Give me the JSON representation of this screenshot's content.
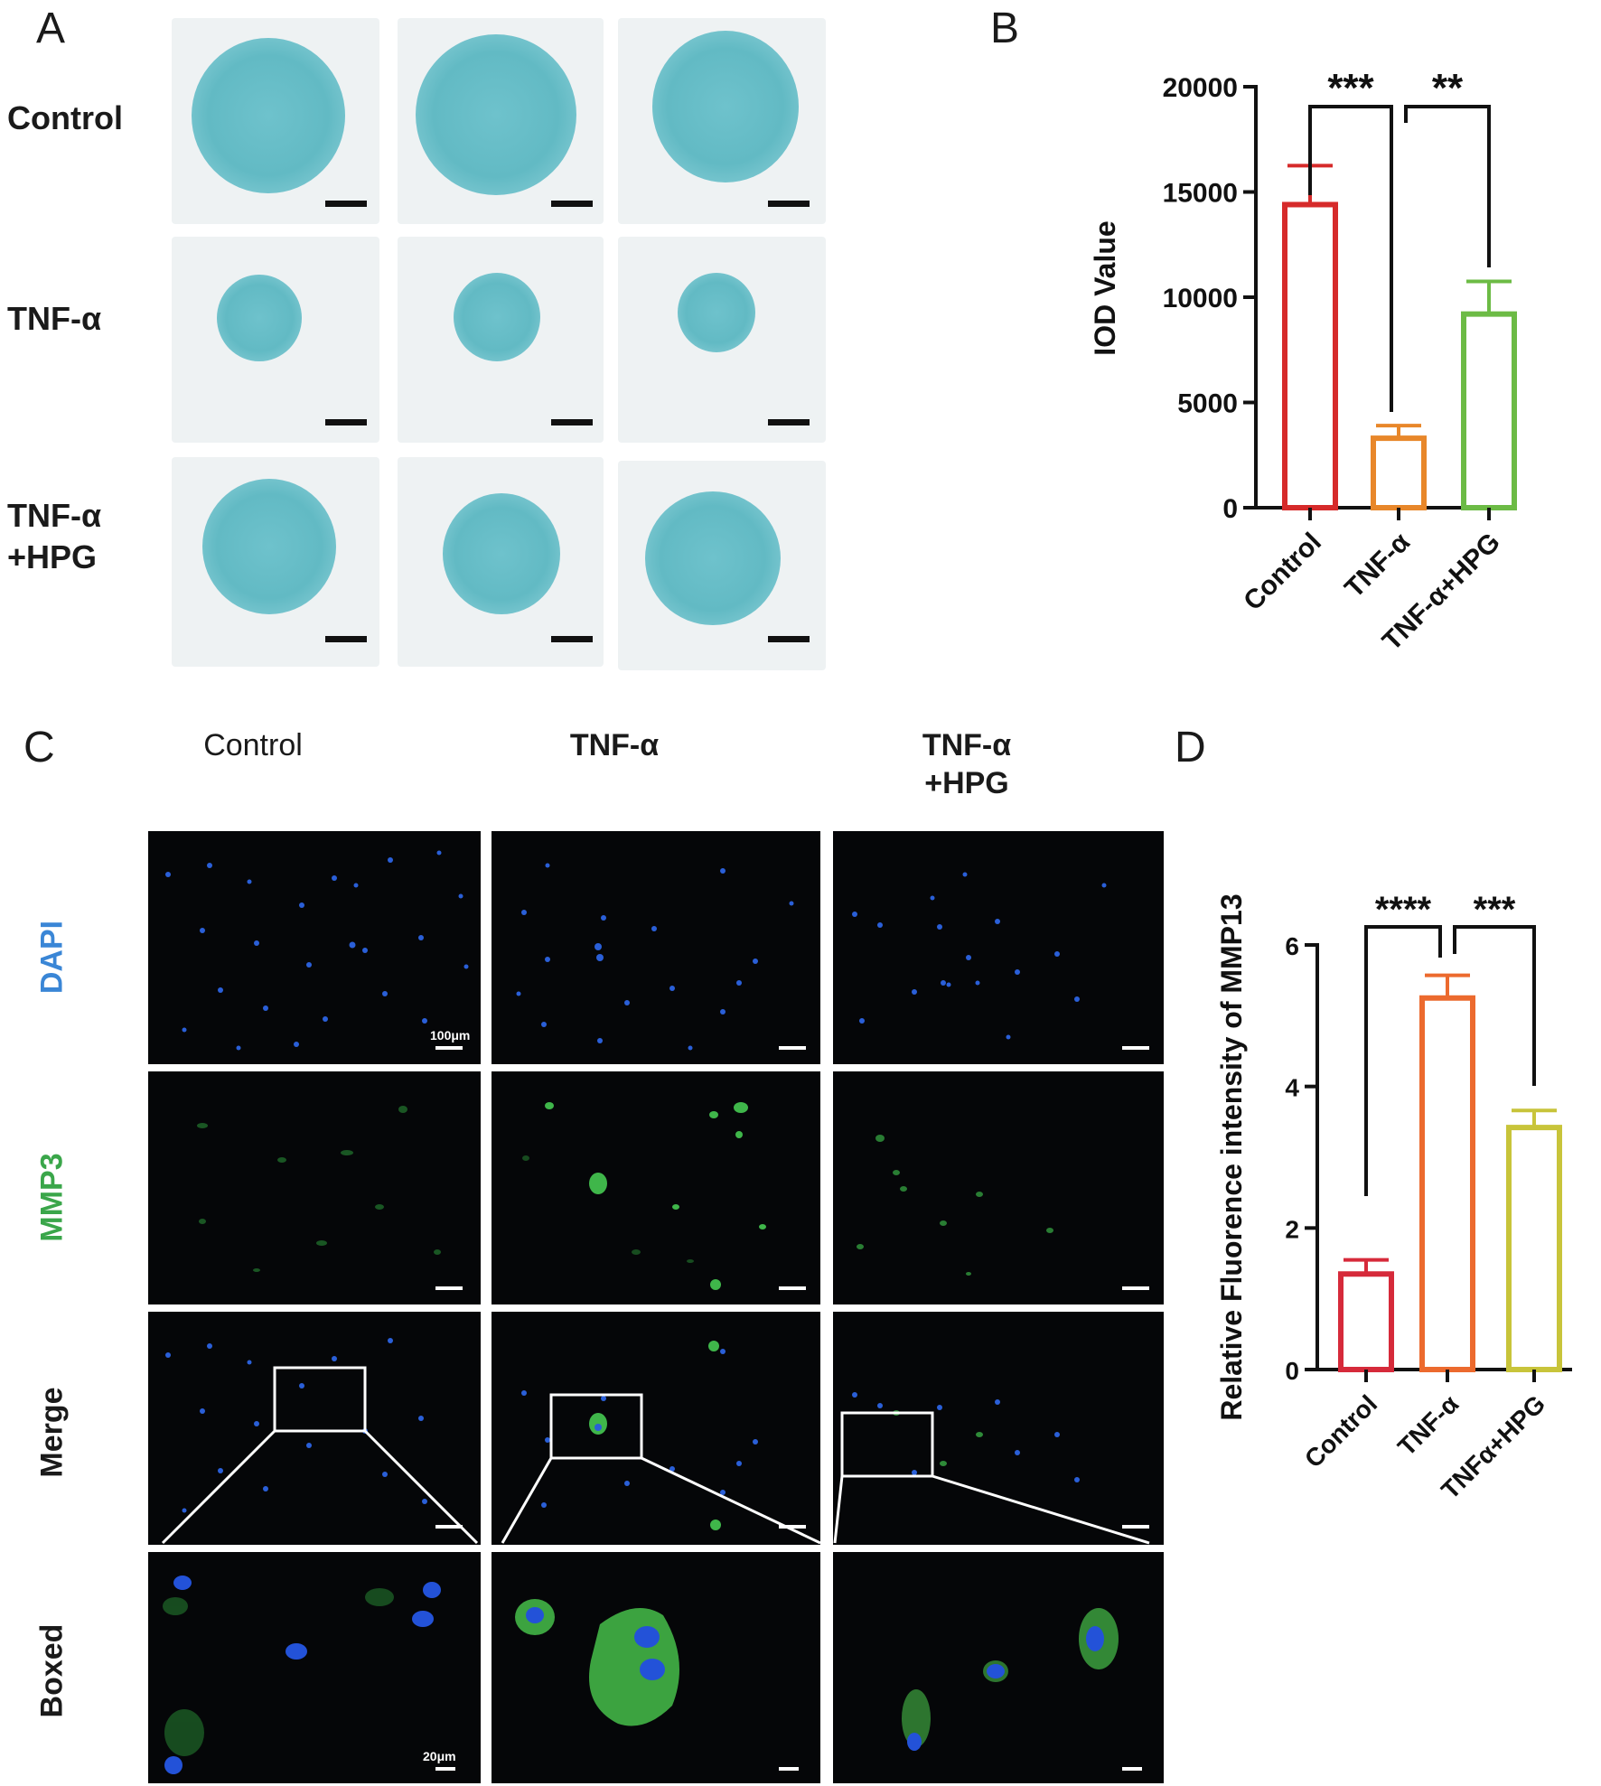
{
  "panels": {
    "A": {
      "letter": "A",
      "rows": [
        {
          "label": "Control"
        },
        {
          "label": "TNF-α"
        },
        {
          "label_line1": "TNF-α",
          "label_line2": "+HPG"
        }
      ]
    },
    "B": {
      "letter": "B"
    },
    "C": {
      "letter": "C",
      "columns": [
        {
          "label": "Control"
        },
        {
          "label": "TNF-α"
        },
        {
          "label_line1": "TNF-α",
          "label_line2": "+HPG"
        }
      ],
      "rows": [
        "DAPI",
        "MMP3",
        "Merge",
        "Boxed"
      ],
      "row_colors": {
        "DAPI": "#3a86d6",
        "MMP3": "#3aa64a",
        "Merge": "#1a1a1a",
        "Boxed": "#1a1a1a"
      },
      "scale_bar_100": "100μm",
      "scale_bar_20": "20μm"
    },
    "D": {
      "letter": "D"
    }
  },
  "chart_data": [
    {
      "panel": "B",
      "type": "bar",
      "categories": [
        "Control",
        "TNF-α",
        "TNF-α+HPG"
      ],
      "values": [
        14400,
        3300,
        9200
      ],
      "errors": [
        1850,
        600,
        1550
      ],
      "colors": [
        "#d62a2a",
        "#e8872a",
        "#6cbb45"
      ],
      "ylabel": "IOD Value",
      "xlabel": "",
      "ylim": [
        0,
        20000
      ],
      "yticks": [
        0,
        5000,
        10000,
        15000,
        20000
      ],
      "significance": [
        {
          "from": 0,
          "to": 1,
          "label": "***"
        },
        {
          "from": 1,
          "to": 2,
          "label": "**"
        }
      ],
      "grid": false
    },
    {
      "panel": "D",
      "type": "bar",
      "categories": [
        "Control",
        "TNF-α",
        "TNFα+HPG"
      ],
      "values": [
        1.35,
        5.25,
        3.42
      ],
      "errors": [
        0.2,
        0.32,
        0.24
      ],
      "colors": [
        "#d62a3a",
        "#ec6a2e",
        "#c8c43a"
      ],
      "ylabel": "Relative Fluorence intensity of MMP13",
      "xlabel": "",
      "ylim": [
        0,
        6
      ],
      "yticks": [
        0,
        2,
        4,
        6
      ],
      "significance": [
        {
          "from": 0,
          "to": 1,
          "label": "****"
        },
        {
          "from": 1,
          "to": 2,
          "label": "***"
        }
      ],
      "grid": false
    }
  ]
}
